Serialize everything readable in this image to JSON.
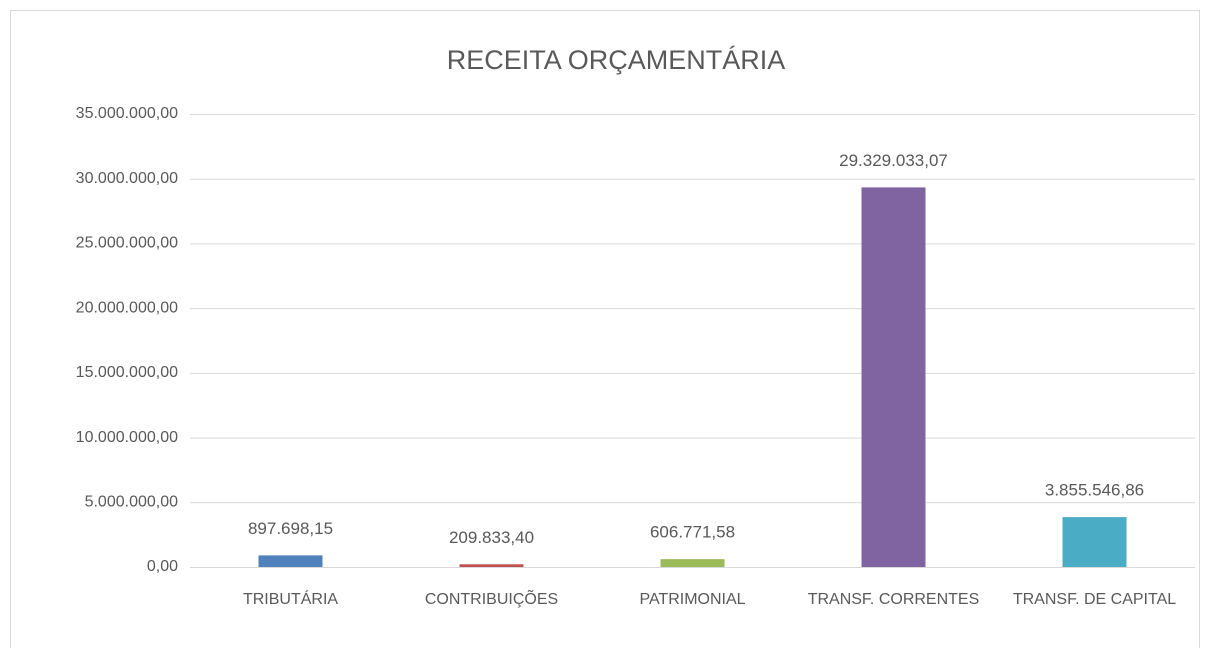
{
  "chart_data": {
    "type": "bar",
    "title": "RECEITA ORÇAMENTÁRIA",
    "categories": [
      "TRIBUTÁRIA",
      "CONTRIBUIÇÕES",
      "PATRIMONIAL",
      "TRANSF. CORRENTES",
      "TRANSF. DE CAPITAL"
    ],
    "values": [
      897698.15,
      209833.4,
      606771.58,
      29329033.07,
      3855546.86
    ],
    "value_labels": [
      "897.698,15",
      "209.833,40",
      "606.771,58",
      "29.329.033,07",
      "3.855.546,86"
    ],
    "colors": [
      "#4f81bd",
      "#c0504d",
      "#9bbb59",
      "#8064a2",
      "#4bacc6"
    ],
    "ylim": [
      0,
      35000000
    ],
    "yticks": [
      {
        "value": 0,
        "label": "0,00"
      },
      {
        "value": 5000000,
        "label": "5.000.000,00"
      },
      {
        "value": 10000000,
        "label": "10.000.000,00"
      },
      {
        "value": 15000000,
        "label": "15.000.000,00"
      },
      {
        "value": 20000000,
        "label": "20.000.000,00"
      },
      {
        "value": 25000000,
        "label": "25.000.000,00"
      },
      {
        "value": 30000000,
        "label": "30.000.000,00"
      },
      {
        "value": 35000000,
        "label": "35.000.000,00"
      }
    ],
    "grid": true
  }
}
